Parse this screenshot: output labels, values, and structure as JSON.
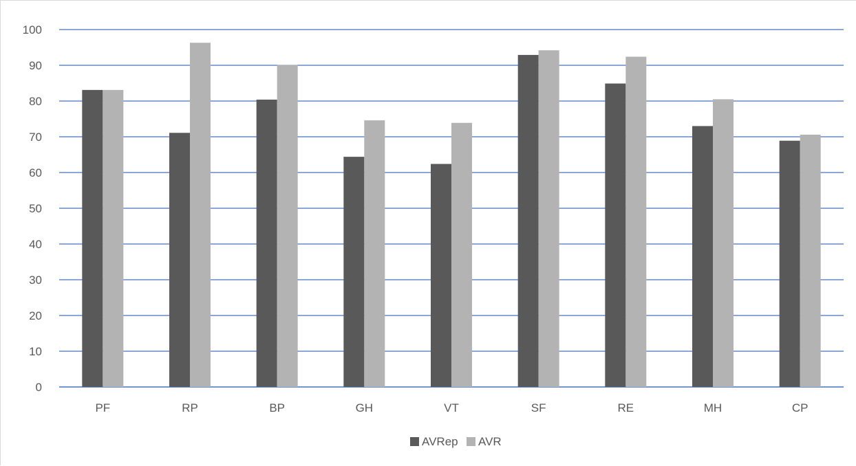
{
  "chart_data": {
    "type": "bar",
    "title": "",
    "xlabel": "",
    "ylabel": "",
    "categories": [
      "PF",
      "RP",
      "BP",
      "GH",
      "VT",
      "SF",
      "RE",
      "MH",
      "CP"
    ],
    "series": [
      {
        "name": "AVRep",
        "color": "#595959",
        "values": [
          83.1,
          71.1,
          80.4,
          64.4,
          62.4,
          92.9,
          84.9,
          73.0,
          68.9
        ]
      },
      {
        "name": "AVR",
        "color": "#b3b3b3",
        "values": [
          83.1,
          96.3,
          90.1,
          74.6,
          73.9,
          94.2,
          92.4,
          80.5,
          70.6
        ]
      }
    ],
    "ylim": [
      0,
      100
    ],
    "yticks": [
      0,
      10,
      20,
      30,
      40,
      50,
      60,
      70,
      80,
      90,
      100
    ],
    "ytick_labels": [
      "0",
      "10",
      "20",
      "30",
      "40",
      "50",
      "60",
      "70",
      "80",
      "90",
      "100"
    ],
    "grid": true,
    "grid_color": "#4472c4",
    "legend_position": "bottom"
  }
}
